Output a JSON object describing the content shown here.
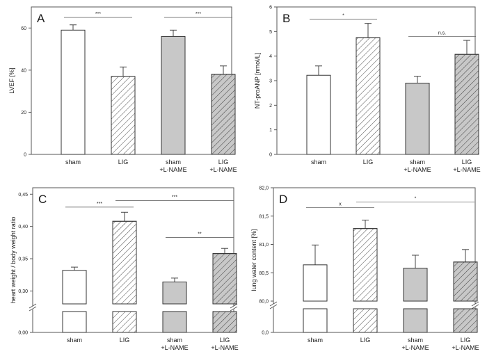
{
  "chart_data": [
    {
      "id": "A",
      "type": "bar",
      "panel_label": "A",
      "ylabel": "LVEF [%]",
      "categories": [
        [
          "sham"
        ],
        [
          "LIG"
        ],
        [
          "sham",
          "+L-NAME"
        ],
        [
          "LIG",
          "+L-NAME"
        ]
      ],
      "values": [
        59,
        37,
        56,
        38
      ],
      "errors": [
        2.5,
        4.5,
        3.0,
        4.0
      ],
      "ylim": [
        0,
        70
      ],
      "yticks": [
        0,
        20,
        40,
        60
      ],
      "ytick_labels": [
        "0",
        "20",
        "40",
        "60"
      ],
      "significance": [
        {
          "from": 0,
          "to": 1,
          "label": "***",
          "y": 65
        },
        {
          "from": 2,
          "to": 3,
          "label": "***",
          "y": 65
        }
      ]
    },
    {
      "id": "B",
      "type": "bar",
      "panel_label": "B",
      "ylabel": "NT-proANP [nmol/L]",
      "categories": [
        [
          "sham"
        ],
        [
          "LIG"
        ],
        [
          "sham",
          "+L-NAME"
        ],
        [
          "LIG",
          "+L-NAME"
        ]
      ],
      "values": [
        3.22,
        4.75,
        2.9,
        4.07
      ],
      "errors": [
        0.38,
        0.58,
        0.28,
        0.57
      ],
      "ylim": [
        0,
        6
      ],
      "yticks": [
        0,
        1,
        2,
        3,
        4,
        5,
        6
      ],
      "ytick_labels": [
        "0",
        "1",
        "2",
        "3",
        "4",
        "5",
        "6"
      ],
      "significance": [
        {
          "from": 0,
          "to": 1,
          "label": "*",
          "y": 5.5
        },
        {
          "from": 2,
          "to": 3,
          "label": "n.s.",
          "y": 4.8
        }
      ]
    },
    {
      "id": "C",
      "type": "bar",
      "panel_label": "C",
      "broken_axis": true,
      "ylabel": "heart weight / body weight ratio",
      "categories": [
        [
          "sham"
        ],
        [
          "LIG"
        ],
        [
          "sham",
          "+L-NAME"
        ],
        [
          "LIG",
          "+L-NAME"
        ]
      ],
      "values": [
        0.332,
        0.408,
        0.314,
        0.358
      ],
      "errors": [
        0.005,
        0.014,
        0.006,
        0.008
      ],
      "ylim": [
        0.28,
        0.46
      ],
      "yticks": [
        0.3,
        0.35,
        0.4,
        0.45
      ],
      "ytick_labels": [
        "0,30",
        "0,35",
        "0,40",
        "0,45"
      ],
      "lower_label": "0,00",
      "significance": [
        {
          "from": 0,
          "to": 1,
          "label": "***",
          "y": 0.43
        },
        {
          "from": 1,
          "to": 3,
          "label": "***",
          "y": 0.44
        },
        {
          "from": 2,
          "to": 3,
          "label": "**",
          "y": 0.383
        }
      ]
    },
    {
      "id": "D",
      "type": "bar",
      "panel_label": "D",
      "broken_axis": true,
      "ylabel": "lung water content [%]",
      "categories": [
        [
          "sham"
        ],
        [
          "LIG"
        ],
        [
          "sham",
          "+L-NAME"
        ],
        [
          "LIG",
          "+L-NAME"
        ]
      ],
      "values": [
        80.64,
        81.28,
        80.58,
        80.69
      ],
      "errors": [
        0.35,
        0.15,
        0.23,
        0.22
      ],
      "ylim": [
        80.0,
        82.0
      ],
      "yticks": [
        80.0,
        80.5,
        81.0,
        81.5,
        82.0
      ],
      "ytick_labels": [
        "80,0",
        "80,5",
        "81,0",
        "81,5",
        "82,0"
      ],
      "lower_label": "0,0",
      "significance": [
        {
          "from": 0,
          "to": 1,
          "label": "x",
          "y": 81.65
        },
        {
          "from": 1,
          "to": 3,
          "label": "*",
          "y": 81.75
        }
      ]
    }
  ],
  "bar_styles": [
    {
      "fill": "#ffffff",
      "hatch": false
    },
    {
      "fill": "#ffffff",
      "hatch": true
    },
    {
      "fill": "#c8c8c8",
      "hatch": false
    },
    {
      "fill": "#c8c8c8",
      "hatch": true
    }
  ]
}
